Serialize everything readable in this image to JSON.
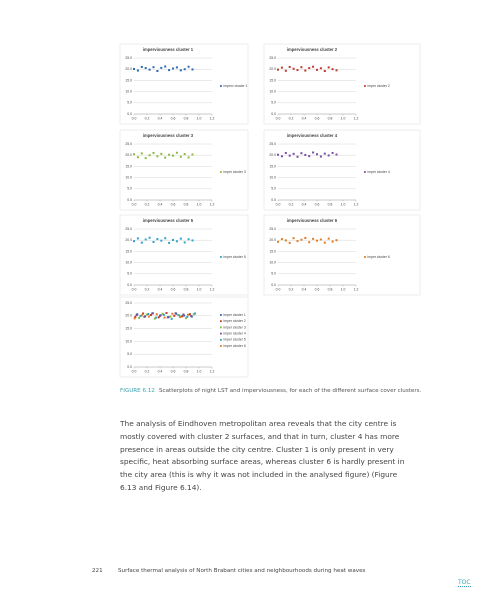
{
  "figure": {
    "charts": [
      {
        "type": "scatter",
        "title": "imperviousness cluster 1",
        "series": [
          {
            "name": "imperv cluster 1",
            "color": "#2a6ab3",
            "x": [
              0,
              0.06,
              0.12,
              0.18,
              0.24,
              0.3,
              0.36,
              0.42,
              0.48,
              0.54,
              0.6,
              0.66,
              0.72,
              0.78,
              0.84,
              0.9
            ],
            "y": [
              20.1,
              19.4,
              21.0,
              20.5,
              19.8,
              20.9,
              19.2,
              20.6,
              21.2,
              19.6,
              20.3,
              20.8,
              19.5,
              20.0,
              21.1,
              19.9
            ]
          }
        ],
        "xlim": [
          0,
          1.2
        ],
        "ylim": [
          0,
          25
        ],
        "xticks": [
          {
            "value": 0,
            "label": "0.0"
          },
          0.2,
          0.4,
          0.6,
          0.8,
          {
            "value": 1,
            "label": "1.0"
          },
          1.2
        ],
        "yticks": [
          {
            "value": 0,
            "label": "0.0"
          },
          {
            "value": 5,
            "label": "5.0"
          },
          {
            "value": 10,
            "label": "10.0"
          },
          {
            "value": 15,
            "label": "15.0"
          },
          {
            "value": 20,
            "label": "20.0"
          },
          {
            "value": 25,
            "label": "25.0"
          }
        ]
      },
      {
        "type": "scatter",
        "title": "imperviousness cluster 2",
        "series": [
          {
            "name": "imper cluster 2",
            "color": "#c0392b",
            "x": [
              0,
              0.06,
              0.12,
              0.18,
              0.24,
              0.3,
              0.36,
              0.42,
              0.48,
              0.54,
              0.6,
              0.66,
              0.72,
              0.78,
              0.84,
              0.9
            ],
            "y": [
              19.8,
              20.7,
              19.3,
              21.0,
              20.2,
              19.6,
              20.9,
              19.4,
              20.5,
              21.1,
              19.7,
              20.4,
              19.2,
              20.8,
              20.0,
              19.5
            ]
          }
        ],
        "xlim": [
          0,
          1.2
        ],
        "ylim": [
          0,
          25
        ],
        "xticks": [
          {
            "value": 0,
            "label": "0.0"
          },
          0.2,
          0.4,
          0.6,
          0.8,
          {
            "value": 1,
            "label": "1.0"
          },
          1.2
        ],
        "yticks": [
          {
            "value": 0,
            "label": "0.0"
          },
          {
            "value": 5,
            "label": "5.0"
          },
          {
            "value": 10,
            "label": "10.0"
          },
          {
            "value": 15,
            "label": "15.0"
          },
          {
            "value": 20,
            "label": "20.0"
          },
          {
            "value": 25,
            "label": "25.0"
          }
        ]
      },
      {
        "type": "scatter",
        "title": "imperviousness cluster 3",
        "series": [
          {
            "name": "imper cluster 3",
            "color": "#8dbb3a",
            "x": [
              0,
              0.06,
              0.12,
              0.18,
              0.24,
              0.3,
              0.36,
              0.42,
              0.48,
              0.54,
              0.6,
              0.66,
              0.72,
              0.78,
              0.84,
              0.9
            ],
            "y": [
              20.4,
              19.1,
              20.8,
              18.7,
              20.0,
              21.0,
              19.5,
              20.6,
              18.9,
              20.2,
              19.8,
              21.1,
              19.3,
              20.5,
              19.0,
              20.3
            ]
          }
        ],
        "xlim": [
          0,
          1.2
        ],
        "ylim": [
          0,
          25
        ],
        "xticks": [
          {
            "value": 0,
            "label": "0.0"
          },
          0.2,
          0.4,
          0.6,
          0.8,
          {
            "value": 1,
            "label": "1.0"
          },
          1.2
        ],
        "yticks": [
          {
            "value": 0,
            "label": "0.0"
          },
          {
            "value": 5,
            "label": "5.0"
          },
          {
            "value": 10,
            "label": "10.0"
          },
          {
            "value": 15,
            "label": "15.0"
          },
          {
            "value": 20,
            "label": "20.0"
          },
          {
            "value": 25,
            "label": "25.0"
          }
        ]
      },
      {
        "type": "scatter",
        "title": "imperviousness cluster 4",
        "series": [
          {
            "name": "imper cluster 4",
            "color": "#7b4ea3",
            "x": [
              0,
              0.06,
              0.12,
              0.18,
              0.24,
              0.3,
              0.36,
              0.42,
              0.48,
              0.54,
              0.6,
              0.66,
              0.72,
              0.78,
              0.84,
              0.9
            ],
            "y": [
              20.2,
              19.5,
              21.0,
              19.8,
              20.6,
              19.3,
              20.9,
              20.1,
              19.6,
              21.2,
              20.4,
              19.4,
              20.7,
              19.9,
              21.0,
              20.3
            ]
          }
        ],
        "xlim": [
          0,
          1.2
        ],
        "ylim": [
          0,
          25
        ],
        "xticks": [
          {
            "value": 0,
            "label": "0.0"
          },
          0.2,
          0.4,
          0.6,
          0.8,
          {
            "value": 1,
            "label": "1.0"
          },
          1.2
        ],
        "yticks": [
          {
            "value": 0,
            "label": "0.0"
          },
          {
            "value": 5,
            "label": "5.0"
          },
          {
            "value": 10,
            "label": "10.0"
          },
          {
            "value": 15,
            "label": "15.0"
          },
          {
            "value": 20,
            "label": "20.0"
          },
          {
            "value": 25,
            "label": "25.0"
          }
        ]
      },
      {
        "type": "scatter",
        "title": "imperviousness cluster 5",
        "series": [
          {
            "name": "imper cluster 5",
            "color": "#2ea3c9",
            "x": [
              0,
              0.06,
              0.12,
              0.18,
              0.24,
              0.3,
              0.36,
              0.42,
              0.48,
              0.54,
              0.6,
              0.66,
              0.72,
              0.78,
              0.84,
              0.9
            ],
            "y": [
              19.6,
              20.8,
              18.9,
              20.3,
              21.1,
              19.2,
              20.5,
              19.8,
              20.9,
              18.8,
              20.1,
              19.5,
              20.7,
              19.0,
              20.4,
              19.9
            ]
          }
        ],
        "xlim": [
          0,
          1.2
        ],
        "ylim": [
          0,
          25
        ],
        "xticks": [
          {
            "value": 0,
            "label": "0.0"
          },
          0.2,
          0.4,
          0.6,
          0.8,
          {
            "value": 1,
            "label": "1.0"
          },
          1.2
        ],
        "yticks": [
          {
            "value": 0,
            "label": "0.0"
          },
          {
            "value": 5,
            "label": "5.0"
          },
          {
            "value": 10,
            "label": "10.0"
          },
          {
            "value": 15,
            "label": "15.0"
          },
          {
            "value": 20,
            "label": "20.0"
          },
          {
            "value": 25,
            "label": "25.0"
          }
        ]
      },
      {
        "type": "scatter",
        "title": "imperviousness cluster 6",
        "series": [
          {
            "name": "imper cluster 6",
            "color": "#e07b24",
            "x": [
              0,
              0.06,
              0.12,
              0.18,
              0.24,
              0.3,
              0.36,
              0.42,
              0.48,
              0.54,
              0.6,
              0.66,
              0.72,
              0.78,
              0.84,
              0.9
            ],
            "y": [
              19.3,
              20.5,
              19.9,
              18.8,
              20.9,
              19.6,
              20.2,
              21.0,
              19.1,
              20.6,
              19.8,
              20.3,
              18.9,
              20.7,
              19.4,
              20.0
            ]
          }
        ],
        "xlim": [
          0,
          1.2
        ],
        "ylim": [
          0,
          25
        ],
        "xticks": [
          {
            "value": 0,
            "label": "0.0"
          },
          0.2,
          0.4,
          0.6,
          0.8,
          {
            "value": 1,
            "label": "1.0"
          },
          1.2
        ],
        "yticks": [
          {
            "value": 0,
            "label": "0.0"
          },
          {
            "value": 5,
            "label": "5.0"
          },
          {
            "value": 10,
            "label": "10.0"
          },
          {
            "value": 15,
            "label": "15.0"
          },
          {
            "value": 20,
            "label": "20.0"
          },
          {
            "value": 25,
            "label": "25.0"
          }
        ]
      },
      {
        "type": "scatter",
        "series": [
          {
            "name": "imper cluster 1",
            "color": "#2a6ab3",
            "x": [
              0.05,
              0.17,
              0.29,
              0.41,
              0.53,
              0.65,
              0.77,
              0.89
            ],
            "y": [
              20.6,
              19.8,
              21.0,
              20.2,
              19.5,
              20.8,
              20.1,
              19.7
            ]
          },
          {
            "name": "imper cluster 2",
            "color": "#c0392b",
            "x": [
              0.02,
              0.14,
              0.26,
              0.38,
              0.5,
              0.62,
              0.74,
              0.86
            ],
            "y": [
              19.6,
              20.9,
              20.3,
              19.4,
              21.1,
              20.0,
              19.8,
              20.6
            ]
          },
          {
            "name": "imper cluster 3",
            "color": "#8dbb3a",
            "x": [
              0.08,
              0.2,
              0.32,
              0.44,
              0.56,
              0.68,
              0.8,
              0.92
            ],
            "y": [
              19.2,
              20.5,
              18.9,
              20.8,
              19.7,
              20.3,
              19.1,
              20.6
            ]
          },
          {
            "name": "imper cluster 4",
            "color": "#7b4ea3",
            "x": [
              0.04,
              0.16,
              0.28,
              0.4,
              0.52,
              0.64,
              0.76,
              0.88
            ],
            "y": [
              20.3,
              19.6,
              20.9,
              20.0,
              19.4,
              21.0,
              20.5,
              19.9
            ]
          },
          {
            "name": "imper cluster 5",
            "color": "#2ea3c9",
            "x": [
              0.1,
              0.22,
              0.34,
              0.46,
              0.58,
              0.7,
              0.82,
              0.94
            ],
            "y": [
              19.9,
              20.7,
              19.3,
              20.4,
              18.8,
              20.1,
              19.6,
              20.9
            ]
          },
          {
            "name": "imper cluster 6",
            "color": "#e07b24",
            "x": [
              0.01,
              0.12,
              0.23,
              0.35,
              0.47,
              0.59,
              0.71,
              0.83
            ],
            "y": [
              19.0,
              20.2,
              19.7,
              20.6,
              19.3,
              20.8,
              19.5,
              20.4
            ]
          }
        ],
        "xlim": [
          0,
          1.2
        ],
        "ylim": [
          0,
          25
        ],
        "xticks": [
          {
            "value": 0,
            "label": "0.0"
          },
          0.2,
          0.4,
          0.6,
          0.8,
          {
            "value": 1,
            "label": "1.0"
          },
          1.2
        ],
        "yticks": [
          {
            "value": 0,
            "label": "0.0"
          },
          {
            "value": 5,
            "label": "5.0"
          },
          {
            "value": 10,
            "label": "10.0"
          },
          {
            "value": 15,
            "label": "15.0"
          },
          {
            "value": 20,
            "label": "20.0"
          },
          {
            "value": 25,
            "label": "25.0"
          }
        ]
      }
    ]
  },
  "caption": {
    "label": "FIGURE 6.12",
    "text": "Scatterplots of night LST and imperviousness, for each of the different surface cover clusters."
  },
  "paragraph": "The analysis of Eindhoven metropolitan area reveals that the city centre is mostly covered with cluster 2 surfaces, and that in turn, cluster 4 has more presence in areas outside the city centre. Cluster 1 is only present in very specific, heat absorbing surface areas, whereas cluster 6 is hardly present in the city area (this is why it was not included in the analysed figure) (Figure 6.13 and Figure 6.14).",
  "footer": {
    "page": "221",
    "text": "Surface thermal analysis of North Brabant cities and neighbourhoods during heat waves"
  },
  "toc": "TOC"
}
